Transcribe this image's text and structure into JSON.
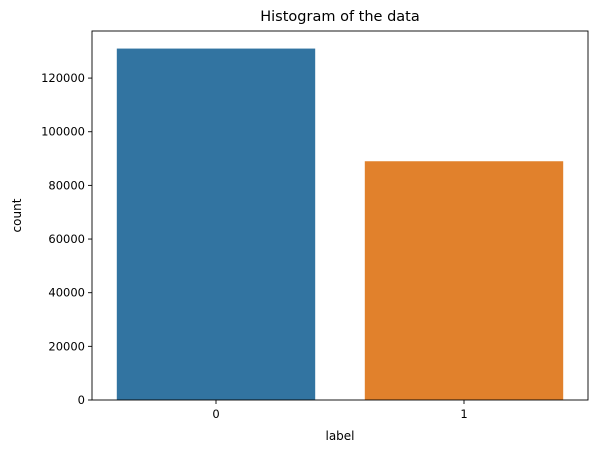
{
  "chart_data": {
    "type": "bar",
    "title": "Histogram of the data",
    "xlabel": "label",
    "ylabel": "count",
    "categories": [
      "0",
      "1"
    ],
    "values": [
      131000,
      89000
    ],
    "colors": [
      "#3274a1",
      "#e1812c"
    ],
    "ylim": [
      0,
      137550
    ],
    "yticks": [
      0,
      20000,
      40000,
      60000,
      80000,
      100000,
      120000
    ],
    "ytick_labels": [
      "0",
      "20000",
      "40000",
      "60000",
      "80000",
      "100000",
      "120000"
    ],
    "grid": false,
    "legend": "none"
  }
}
